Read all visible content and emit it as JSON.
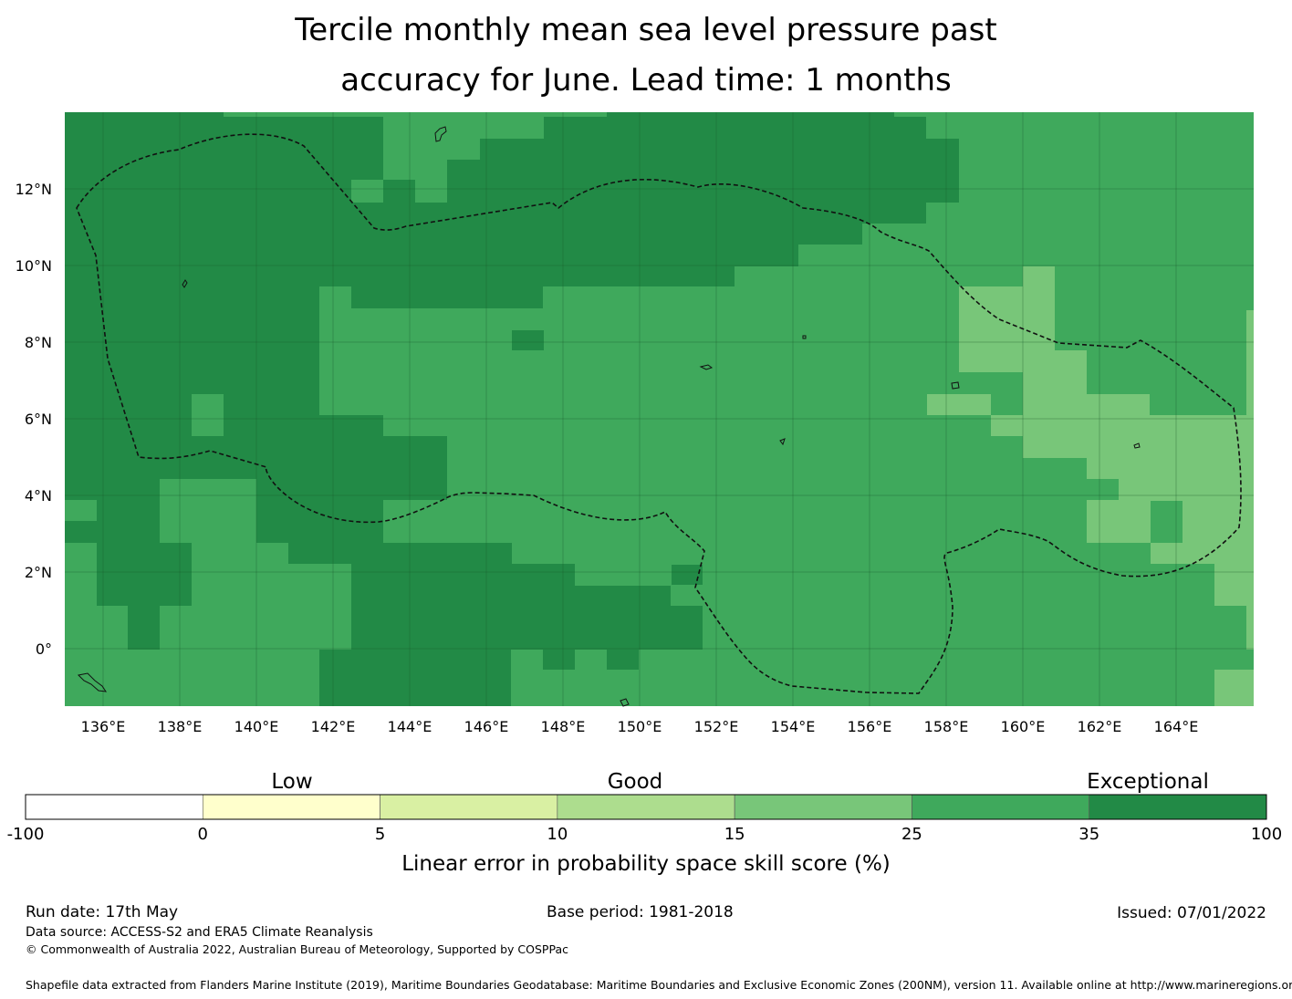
{
  "title_line1": "Tercile monthly mean sea level pressure past",
  "title_line2": "accuracy for June. Lead time: 1 months",
  "map": {
    "lon_ticks": [
      "136°E",
      "138°E",
      "140°E",
      "142°E",
      "144°E",
      "146°E",
      "148°E",
      "150°E",
      "152°E",
      "154°E",
      "156°E",
      "158°E",
      "160°E",
      "162°E",
      "164°E"
    ],
    "lat_ticks": [
      "12°N",
      "10°N",
      "8°N",
      "6°N",
      "4°N",
      "2°N",
      "0°"
    ],
    "colors": {
      "c35_100": "#228a46",
      "c25_35": "#3fa95c",
      "c15_25": "#78c679",
      "c10_15": "#addd8e",
      "c5_10": "#d9f0a3",
      "c0_5": "#ffffcc",
      "c_neg": "#ffffff"
    }
  },
  "colorbar": {
    "category_labels": [
      "Low",
      "Good",
      "Exceptional"
    ],
    "tick_labels": [
      "-100",
      "0",
      "5",
      "10",
      "15",
      "25",
      "35",
      "100"
    ],
    "bin_colors": [
      "#ffffff",
      "#ffffcc",
      "#d9f0a3",
      "#addd8e",
      "#78c679",
      "#3fa95c",
      "#228a46"
    ],
    "label": "Linear error in probability space skill score (%)"
  },
  "footer": {
    "run_date": "Run date: 17th May",
    "base_period": "Base period: 1981-2018",
    "issued": "Issued: 07/01/2022",
    "data_source": "Data source: ACCESS-S2 and ERA5 Climate Reanalysis",
    "copyright": "© Commonwealth of Australia 2022, Australian Bureau of Meteorology, Supported by COSPPac",
    "shapefile": "Shapefile data extracted from Flanders Marine Institute (2019), Maritime Boundaries Geodatabase: Maritime Boundaries and Exclusive Economic Zones (200NM), version 11. Available online at http://www.marineregions.org/."
  }
}
